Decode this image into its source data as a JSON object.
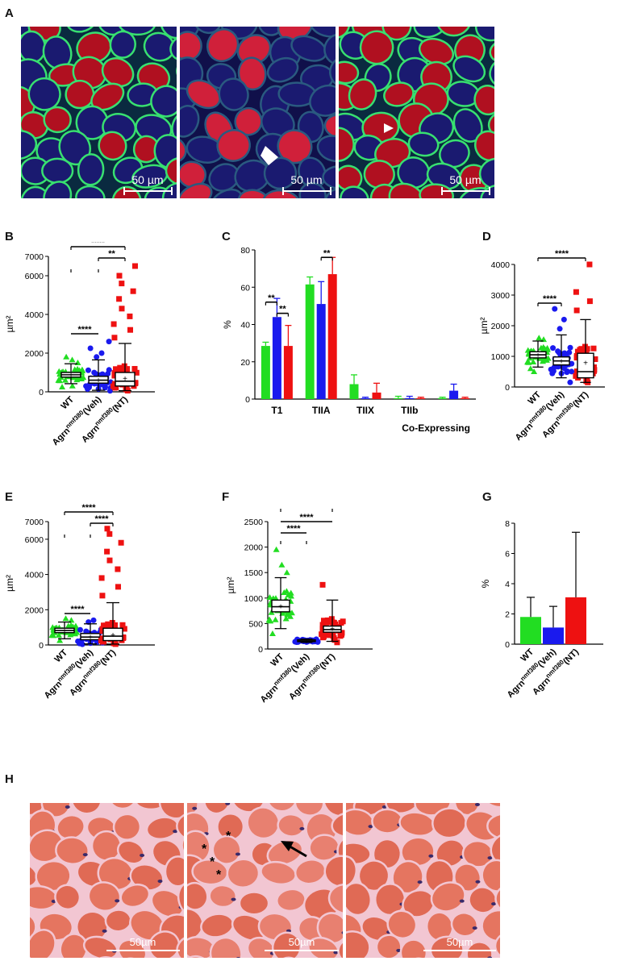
{
  "panels": {
    "A": {
      "letter": "A",
      "scale_labels": [
        "50 µm",
        "50 µm",
        "50 µm"
      ]
    },
    "B": {
      "letter": "B"
    },
    "C": {
      "letter": "C"
    },
    "D": {
      "letter": "D"
    },
    "E": {
      "letter": "E"
    },
    "F": {
      "letter": "F"
    },
    "G": {
      "letter": "G"
    },
    "H": {
      "letter": "H",
      "scale_labels": [
        "50µm",
        "50µm",
        "50µm"
      ],
      "asterisk": "*"
    }
  },
  "group_labels": {
    "wt": "WT",
    "agrn_base": "Agrn",
    "agrn_sup": "nmf380",
    "veh": "(Veh)",
    "nt": "(NT)"
  },
  "colors": {
    "wt": "#22dd22",
    "veh": "#1a1aee",
    "nt": "#ee1111",
    "fiber_red": "#b01020",
    "fiber_blue": "#1a1a70",
    "membrane": "#38e070",
    "he_fiber": "#e06a55",
    "he_membrane": "#f2c6d2",
    "nuclei": "#3a2a6a"
  },
  "chart_data": [
    {
      "panel": "B",
      "type": "box",
      "ylabel": "µm²",
      "ylim": [
        0,
        7000
      ],
      "yticks": [
        "0",
        "2000",
        "4000",
        "6000",
        "7000"
      ],
      "groups": [
        {
          "name": "WT",
          "median": 880,
          "q1": 760,
          "q3": 1000,
          "wlo": 420,
          "whi": 1450,
          "mean": 890,
          "outliers": [
            1500,
            1650,
            1800,
            250,
            300
          ]
        },
        {
          "name": "Agrn nmf380 (Veh)",
          "median": 600,
          "q1": 450,
          "q3": 800,
          "wlo": 80,
          "whi": 1650,
          "mean": 620,
          "outliers": [
            1800,
            2000,
            2250,
            2600,
            50
          ]
        },
        {
          "name": "Agrn nmf380 (NT)",
          "median": 550,
          "q1": 300,
          "q3": 1000,
          "wlo": 60,
          "whi": 2500,
          "mean": 700,
          "outliers": [
            2800,
            3200,
            3500,
            3900,
            4300,
            4800,
            5200,
            5600,
            6000,
            6500
          ]
        }
      ],
      "significance": [
        {
          "from": 0,
          "to": 2,
          "label": "****"
        },
        {
          "from": 1,
          "to": 2,
          "label": "**"
        },
        {
          "from": 0,
          "to": 1,
          "label": "****"
        }
      ]
    },
    {
      "panel": "C",
      "type": "bar",
      "ylabel": "%",
      "ylim": [
        0,
        80
      ],
      "yticks": [
        "0",
        "20",
        "40",
        "60",
        "80"
      ],
      "categories": [
        "T1",
        "TIIA",
        "TIIX",
        "TIIb",
        "Co-Expressing"
      ],
      "series": [
        {
          "values": [
            28.5,
            61.5,
            8,
            0.5,
            0.5
          ],
          "errors": [
            2,
            4,
            5,
            1,
            0.5
          ]
        },
        {
          "values": [
            44,
            51,
            0.5,
            0.5,
            4.5
          ],
          "errors": [
            10,
            12,
            0.5,
            1,
            3.5
          ]
        },
        {
          "values": [
            28.5,
            67,
            3.5,
            0.5,
            0.5
          ],
          "errors": [
            11,
            9,
            5,
            0.5,
            0.5
          ]
        }
      ],
      "significance": [
        {
          "category": 0,
          "from": 0,
          "to": 1,
          "label": "**"
        },
        {
          "category": 0,
          "from": 1,
          "to": 2,
          "label": "**"
        },
        {
          "category": 1,
          "from": 1,
          "to": 2,
          "label": "**"
        }
      ]
    },
    {
      "panel": "D",
      "type": "box",
      "ylabel": "µm²",
      "ylim": [
        0,
        4000
      ],
      "yticks": [
        "0",
        "1000",
        "2000",
        "3000",
        "4000"
      ],
      "groups": [
        {
          "name": "WT",
          "median": 1050,
          "q1": 950,
          "q3": 1150,
          "wlo": 650,
          "whi": 1500,
          "mean": 1050,
          "outliers": [
            1550,
            1600,
            500,
            600
          ]
        },
        {
          "name": "Agrn nmf380 (Veh)",
          "median": 850,
          "q1": 720,
          "q3": 980,
          "wlo": 300,
          "whi": 1700,
          "mean": 850,
          "outliers": [
            1900,
            2200,
            2550,
            150
          ]
        },
        {
          "name": "Agrn nmf380 (NT)",
          "median": 500,
          "q1": 300,
          "q3": 1100,
          "wlo": 150,
          "whi": 2200,
          "mean": 800,
          "outliers": [
            2500,
            2800,
            3100,
            4000
          ]
        }
      ],
      "significance": [
        {
          "from": 0,
          "to": 2,
          "label": "****"
        },
        {
          "from": 0,
          "to": 1,
          "label": "****"
        }
      ]
    },
    {
      "panel": "E",
      "type": "box",
      "ylabel": "µm²",
      "ylim": [
        0,
        7000
      ],
      "yticks": [
        "0",
        "2000",
        "4000",
        "6000",
        "7000"
      ],
      "groups": [
        {
          "name": "WT",
          "median": 820,
          "q1": 700,
          "q3": 950,
          "wlo": 350,
          "whi": 1300,
          "mean": 830,
          "outliers": [
            1400,
            1500,
            250
          ]
        },
        {
          "name": "Agrn nmf380 (Veh)",
          "median": 450,
          "q1": 300,
          "q3": 650,
          "wlo": 60,
          "whi": 1200,
          "mean": 480,
          "outliers": [
            1300,
            1400,
            40
          ]
        },
        {
          "name": "Agrn nmf380 (NT)",
          "median": 500,
          "q1": 250,
          "q3": 950,
          "wlo": 50,
          "whi": 2400,
          "mean": 600,
          "outliers": [
            2800,
            3300,
            3800,
            4300,
            4800,
            5300,
            5800,
            6300,
            6600
          ]
        }
      ],
      "significance": [
        {
          "from": 0,
          "to": 2,
          "label": "****"
        },
        {
          "from": 1,
          "to": 2,
          "label": "****"
        },
        {
          "from": 0,
          "to": 1,
          "label": "****"
        }
      ]
    },
    {
      "panel": "F",
      "type": "box",
      "ylabel": "µm²",
      "ylim": [
        0,
        2500
      ],
      "yticks": [
        "0",
        "500",
        "1000",
        "1500",
        "2000",
        "2500"
      ],
      "groups": [
        {
          "name": "WT",
          "median": 830,
          "q1": 730,
          "q3": 960,
          "wlo": 400,
          "whi": 1400,
          "mean": 850,
          "outliers": [
            1500,
            1650,
            1950,
            300
          ]
        },
        {
          "name": "Agrn nmf380 (Veh)",
          "median": 160,
          "q1": 145,
          "q3": 180,
          "wlo": 130,
          "whi": 195,
          "mean": 160,
          "outliers": []
        },
        {
          "name": "Agrn nmf380 (NT)",
          "median": 380,
          "q1": 330,
          "q3": 450,
          "wlo": 150,
          "whi": 960,
          "mean": 400,
          "outliers": [
            1260,
            130
          ]
        }
      ],
      "significance": [
        {
          "from": 0,
          "to": 2,
          "label": "****"
        },
        {
          "from": 0,
          "to": 1,
          "label": "****"
        }
      ]
    },
    {
      "panel": "G",
      "type": "bar",
      "ylabel": "%",
      "ylim": [
        0,
        8
      ],
      "yticks": [
        "0",
        "2",
        "4",
        "6",
        "8"
      ],
      "categories": [
        "WT",
        "Agrn nmf380 (Veh)",
        "Agrn nmf380 (NT)"
      ],
      "values": [
        1.8,
        1.1,
        3.1
      ],
      "errors": [
        1.3,
        1.4,
        4.3
      ]
    }
  ]
}
